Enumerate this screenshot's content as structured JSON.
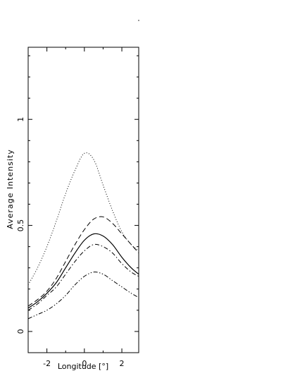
{
  "chart_data": {
    "type": "line",
    "title": "",
    "xlabel": "Longitude [°]",
    "ylabel": "Average Intensity",
    "xlim": [
      -3.0,
      2.9
    ],
    "ylim": [
      -0.1,
      1.34
    ],
    "x_ticks": [
      -2,
      0,
      2
    ],
    "x_tick_labels": [
      "-2",
      "0",
      "2"
    ],
    "y_ticks": [
      0,
      0.5,
      1
    ],
    "y_tick_labels": [
      "0",
      "0.5",
      "1"
    ],
    "grid": false,
    "legend": "none",
    "x": [
      -3.0,
      -2.5,
      -2.0,
      -1.5,
      -1.0,
      -0.5,
      0.0,
      0.5,
      1.0,
      1.5,
      2.0,
      2.5,
      2.9
    ],
    "series": [
      {
        "style": "dotted",
        "values": [
          0.22,
          0.3,
          0.4,
          0.52,
          0.65,
          0.76,
          0.84,
          0.81,
          0.69,
          0.57,
          0.47,
          0.41,
          0.38
        ]
      },
      {
        "style": "dashed",
        "values": [
          0.12,
          0.15,
          0.19,
          0.25,
          0.33,
          0.41,
          0.48,
          0.53,
          0.54,
          0.51,
          0.46,
          0.41,
          0.37
        ]
      },
      {
        "style": "solid",
        "values": [
          0.11,
          0.14,
          0.18,
          0.23,
          0.3,
          0.37,
          0.43,
          0.46,
          0.45,
          0.41,
          0.35,
          0.3,
          0.27
        ]
      },
      {
        "style": "dash-dot",
        "values": [
          0.1,
          0.13,
          0.17,
          0.21,
          0.27,
          0.33,
          0.38,
          0.41,
          0.4,
          0.37,
          0.32,
          0.28,
          0.26
        ]
      },
      {
        "style": "dash-dot-dot",
        "values": [
          0.06,
          0.08,
          0.1,
          0.13,
          0.17,
          0.22,
          0.26,
          0.28,
          0.27,
          0.24,
          0.21,
          0.18,
          0.16
        ]
      }
    ]
  }
}
